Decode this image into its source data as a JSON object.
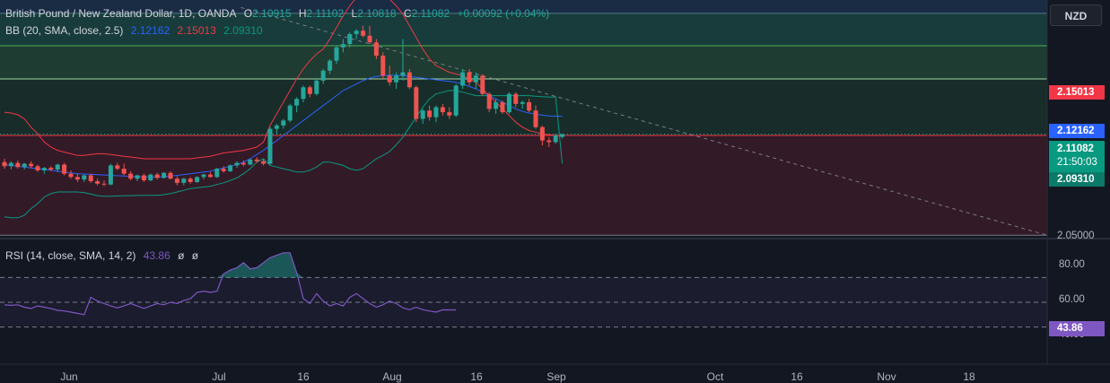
{
  "header": {
    "symbol": "British Pound / New Zealand Dollar, 1D, OANDA",
    "o_label": "O",
    "o_value": "2.10915",
    "h_label": "H",
    "h_value": "2.11102",
    "l_label": "L",
    "l_value": "2.10818",
    "c_label": "C",
    "c_value": "2.11082",
    "change": "+0.00092 (+0.04%)"
  },
  "bb": {
    "label": "BB (20, SMA, close, 2.5)",
    "basis": "2.12162",
    "upper": "2.15013",
    "lower": "2.09310",
    "basis_color": "#2962ff",
    "upper_color": "#f23645",
    "lower_color": "#089981"
  },
  "rsi": {
    "label": "RSI (14, close, SMA, 14, 2)",
    "value": "43.86",
    "d1": "ø",
    "d2": "ø",
    "color": "#7e57c2"
  },
  "currency": "NZD",
  "price_scale": {
    "upper_tag": "2.15013",
    "basis_tag": "2.12162",
    "last_tag": "2.11082",
    "countdown": "21:50:03",
    "lower_tag": "2.09310",
    "bottom_tick": "2.05000"
  },
  "rsi_scale": {
    "ticks": [
      "80.00",
      "60.00",
      "40.00"
    ],
    "value_tag": "43.86"
  },
  "x_axis": [
    "Jun",
    "Jul",
    "16",
    "Aug",
    "16",
    "Sep",
    "Oct",
    "16",
    "Nov",
    "18"
  ],
  "colors": {
    "up": "#26a69a",
    "down": "#ef5350",
    "background": "#131722"
  },
  "chart_data": {
    "type": "candlestick",
    "candles": [
      [
        2.094,
        2.096,
        2.09,
        2.0915
      ],
      [
        2.0915,
        2.0945,
        2.0895,
        2.0935
      ],
      [
        2.0935,
        2.095,
        2.09,
        2.091
      ],
      [
        2.091,
        2.0935,
        2.0895,
        2.093
      ],
      [
        2.093,
        2.0945,
        2.0905,
        2.0915
      ],
      [
        2.0915,
        2.0925,
        2.088,
        2.089
      ],
      [
        2.089,
        2.091,
        2.087,
        2.0905
      ],
      [
        2.0905,
        2.0915,
        2.0885,
        2.0895
      ],
      [
        2.0895,
        2.093,
        2.088,
        2.0925
      ],
      [
        2.0925,
        2.0935,
        2.086,
        2.087
      ],
      [
        2.087,
        2.089,
        2.084,
        2.085
      ],
      [
        2.085,
        2.087,
        2.082,
        2.0835
      ],
      [
        2.0835,
        2.0865,
        2.082,
        2.086
      ],
      [
        2.086,
        2.087,
        2.0815,
        2.0825
      ],
      [
        2.0825,
        2.084,
        2.08,
        2.081
      ],
      [
        2.081,
        2.083,
        2.0795,
        2.0805
      ],
      [
        2.0805,
        2.093,
        2.08,
        2.092
      ],
      [
        2.092,
        2.0935,
        2.089,
        2.09
      ],
      [
        2.09,
        2.093,
        2.086,
        2.087
      ],
      [
        2.087,
        2.0885,
        2.083,
        2.084
      ],
      [
        2.084,
        2.0865,
        2.0825,
        2.086
      ],
      [
        2.086,
        2.087,
        2.082,
        2.083
      ],
      [
        2.083,
        2.087,
        2.0825,
        2.0865
      ],
      [
        2.0865,
        2.0875,
        2.0835,
        2.0845
      ],
      [
        2.0845,
        2.088,
        2.084,
        2.0875
      ],
      [
        2.0875,
        2.0885,
        2.0835,
        2.084
      ],
      [
        2.084,
        2.0855,
        2.08,
        2.0815
      ],
      [
        2.0815,
        2.0845,
        2.08,
        2.084
      ],
      [
        2.084,
        2.085,
        2.081,
        2.082
      ],
      [
        2.082,
        2.0855,
        2.0815,
        2.085
      ],
      [
        2.085,
        2.087,
        2.0835,
        2.0865
      ],
      [
        2.0865,
        2.088,
        2.0845,
        2.085
      ],
      [
        2.085,
        2.0905,
        2.0845,
        2.09
      ],
      [
        2.09,
        2.0915,
        2.0875,
        2.0885
      ],
      [
        2.0885,
        2.0925,
        2.088,
        2.092
      ],
      [
        2.092,
        2.0945,
        2.0905,
        2.0935
      ],
      [
        2.0935,
        2.095,
        2.0915,
        2.0925
      ],
      [
        2.0925,
        2.096,
        2.092,
        2.0955
      ],
      [
        2.0955,
        2.097,
        2.0935,
        2.0945
      ],
      [
        2.0945,
        2.096,
        2.092,
        2.093
      ],
      [
        2.093,
        2.115,
        2.0925,
        2.114
      ],
      [
        2.114,
        2.117,
        2.111,
        2.116
      ],
      [
        2.116,
        2.12,
        2.114,
        2.119
      ],
      [
        2.119,
        2.129,
        2.118,
        2.128
      ],
      [
        2.128,
        2.133,
        2.124,
        2.132
      ],
      [
        2.132,
        2.14,
        2.13,
        2.139
      ],
      [
        2.139,
        2.14,
        2.133,
        2.135
      ],
      [
        2.135,
        2.144,
        2.134,
        2.143
      ],
      [
        2.143,
        2.15,
        2.141,
        2.149
      ],
      [
        2.149,
        2.156,
        2.147,
        2.155
      ],
      [
        2.155,
        2.164,
        2.153,
        2.163
      ],
      [
        2.163,
        2.168,
        2.16,
        2.165
      ],
      [
        2.165,
        2.172,
        2.163,
        2.171
      ],
      [
        2.171,
        2.174,
        2.168,
        2.173
      ],
      [
        2.173,
        2.176,
        2.169,
        2.17
      ],
      [
        2.17,
        2.176,
        2.165,
        2.166
      ],
      [
        2.166,
        2.168,
        2.156,
        2.158
      ],
      [
        2.158,
        2.16,
        2.144,
        2.146
      ],
      [
        2.146,
        2.152,
        2.14,
        2.142
      ],
      [
        2.142,
        2.148,
        2.138,
        2.146
      ],
      [
        2.146,
        2.168,
        2.143,
        2.148
      ],
      [
        2.148,
        2.15,
        2.138,
        2.139
      ],
      [
        2.139,
        2.14,
        2.118,
        2.12
      ],
      [
        2.12,
        2.126,
        2.117,
        2.125
      ],
      [
        2.125,
        2.128,
        2.119,
        2.121
      ],
      [
        2.121,
        2.128,
        2.118,
        2.127
      ],
      [
        2.127,
        2.129,
        2.122,
        2.124
      ],
      [
        2.124,
        2.127,
        2.12,
        2.122
      ],
      [
        2.122,
        2.141,
        2.121,
        2.14
      ],
      [
        2.14,
        2.15,
        2.138,
        2.148
      ],
      [
        2.148,
        2.15,
        2.14,
        2.142
      ],
      [
        2.142,
        2.148,
        2.138,
        2.146
      ],
      [
        2.146,
        2.147,
        2.134,
        2.135
      ],
      [
        2.135,
        2.136,
        2.124,
        2.126
      ],
      [
        2.126,
        2.132,
        2.123,
        2.13
      ],
      [
        2.13,
        2.131,
        2.123,
        2.124
      ],
      [
        2.124,
        2.136,
        2.123,
        2.135
      ],
      [
        2.135,
        2.136,
        2.127,
        2.129
      ],
      [
        2.129,
        2.131,
        2.126,
        2.13
      ],
      [
        2.13,
        2.132,
        2.124,
        2.125
      ],
      [
        2.125,
        2.128,
        2.114,
        2.115
      ],
      [
        2.115,
        2.116,
        2.104,
        2.107
      ],
      [
        2.107,
        2.109,
        2.103,
        2.106
      ],
      [
        2.106,
        2.111,
        2.105,
        2.11
      ],
      [
        2.10915,
        2.11102,
        2.10818,
        2.11082
      ]
    ],
    "bb_upper": [
      2.124,
      2.1235,
      2.1225,
      2.12,
      2.115,
      2.111,
      2.106,
      2.103,
      2.101,
      2.1,
      2.099,
      2.098,
      2.098,
      2.0985,
      2.099,
      2.099,
      2.0985,
      2.098,
      2.0975,
      2.097,
      2.0965,
      2.096,
      2.096,
      2.096,
      2.096,
      2.096,
      2.096,
      2.096,
      2.096,
      2.0965,
      2.097,
      2.0975,
      2.0985,
      2.0995,
      2.1,
      2.1005,
      2.101,
      2.102,
      2.103,
      2.106,
      2.116,
      2.123,
      2.13,
      2.137,
      2.144,
      2.15,
      2.155,
      2.159,
      2.162,
      2.168,
      2.175,
      2.182,
      2.188,
      2.193,
      2.196,
      2.196,
      2.195,
      2.194,
      2.192,
      2.188,
      2.183,
      2.176,
      2.169,
      2.162,
      2.156,
      2.152,
      2.15,
      2.148,
      2.147,
      2.146,
      2.144,
      2.142,
      2.138,
      2.134,
      2.13,
      2.126,
      2.122,
      2.118,
      2.115,
      2.113,
      2.112,
      2.111,
      2.1105,
      2.11,
      2.1095
    ],
    "bb_basis": [
      2.0925,
      2.092,
      2.0915,
      2.091,
      2.0905,
      2.09,
      2.0895,
      2.089,
      2.0885,
      2.088,
      2.0875,
      2.087,
      2.0868,
      2.0866,
      2.0864,
      2.0862,
      2.086,
      2.0858,
      2.0856,
      2.0854,
      2.0852,
      2.085,
      2.085,
      2.085,
      2.0852,
      2.0855,
      2.086,
      2.0865,
      2.087,
      2.0875,
      2.088,
      2.0885,
      2.0895,
      2.0905,
      2.0915,
      2.0925,
      2.094,
      2.096,
      2.0985,
      2.101,
      2.104,
      2.107,
      2.11,
      2.113,
      2.116,
      2.119,
      2.122,
      2.125,
      2.128,
      2.131,
      2.134,
      2.137,
      2.139,
      2.141,
      2.143,
      2.1445,
      2.1455,
      2.146,
      2.1462,
      2.1462,
      2.146,
      2.1455,
      2.145,
      2.1445,
      2.144,
      2.1435,
      2.143,
      2.1425,
      2.142,
      2.141,
      2.1395,
      2.138,
      2.136,
      2.134,
      2.132,
      2.13,
      2.128,
      2.126,
      2.1245,
      2.1235,
      2.1228,
      2.1222,
      2.1218,
      2.1216,
      2.12162
    ],
    "bb_lower": [
      2.061,
      2.0605,
      2.0605,
      2.062,
      2.066,
      2.069,
      2.073,
      2.075,
      2.076,
      2.076,
      2.076,
      2.076,
      2.0756,
      2.0747,
      2.0738,
      2.0734,
      2.0735,
      2.0736,
      2.0737,
      2.0738,
      2.0739,
      2.074,
      2.074,
      2.074,
      2.0744,
      2.075,
      2.076,
      2.077,
      2.078,
      2.0785,
      2.079,
      2.0795,
      2.0805,
      2.0815,
      2.083,
      2.0845,
      2.087,
      2.09,
      2.094,
      2.096,
      2.092,
      2.091,
      2.09,
      2.089,
      2.088,
      2.088,
      2.089,
      2.091,
      2.094,
      2.094,
      2.093,
      2.092,
      2.09,
      2.089,
      2.09,
      2.093,
      2.096,
      2.098,
      2.1004,
      2.1044,
      2.109,
      2.115,
      2.121,
      2.127,
      2.132,
      2.135,
      2.136,
      2.137,
      2.137,
      2.136,
      2.135,
      2.134,
      2.134,
      2.134,
      2.134,
      2.134,
      2.134,
      2.134,
      2.134,
      2.134,
      2.1336,
      2.1334,
      2.1331,
      2.1332,
      2.0931
    ],
    "rsi": [
      48,
      47.5,
      48,
      46,
      45,
      47,
      46,
      45,
      43.5,
      43,
      42,
      41,
      40,
      54,
      51,
      49,
      47,
      45.5,
      47,
      49,
      47,
      45,
      47,
      49,
      48,
      50,
      49,
      51.5,
      53,
      58,
      59,
      58,
      59,
      73,
      76,
      78,
      82,
      77,
      78,
      82,
      86,
      88,
      90,
      90,
      74,
      53,
      49,
      57,
      51,
      47,
      49,
      47,
      54,
      57,
      53,
      49,
      46,
      48,
      51,
      49,
      45.5,
      44,
      46,
      44,
      43,
      42,
      43.9,
      43.86,
      43.86
    ],
    "rsi_ma": [
      47,
      47,
      47,
      47,
      47,
      47,
      47,
      47,
      47,
      47,
      47,
      47,
      47,
      47,
      47,
      47,
      47,
      47,
      47,
      47,
      47,
      47,
      47,
      47,
      47,
      47,
      47,
      47,
      47,
      47,
      47,
      47,
      47,
      47,
      47,
      47,
      47,
      47,
      47,
      47,
      47,
      47,
      47,
      47,
      47,
      47,
      47,
      47,
      47,
      47,
      47,
      47,
      47,
      47,
      47,
      47,
      47,
      47,
      47,
      47,
      47,
      47,
      47,
      47,
      47,
      47,
      47,
      47,
      47
    ],
    "price_range": [
      2.0485,
      2.1915
    ],
    "rsi_range": [
      0,
      100
    ],
    "horizontal_levels": [
      2.1835,
      2.164,
      2.144,
      2.11,
      2.05
    ],
    "zones": [
      {
        "from": 2.1835,
        "to": 2.164,
        "color": "#1e6b5a"
      },
      {
        "from": 2.164,
        "to": 2.144,
        "color": "#2d6a45"
      },
      {
        "from": 2.144,
        "to": 2.11,
        "color": "#1e4a35"
      },
      {
        "from": 2.11,
        "to": 2.05,
        "color": "#5c1f2e"
      }
    ],
    "trendline": [
      [
        0.23,
        2.187
      ],
      [
        1.0,
        2.05
      ]
    ]
  }
}
